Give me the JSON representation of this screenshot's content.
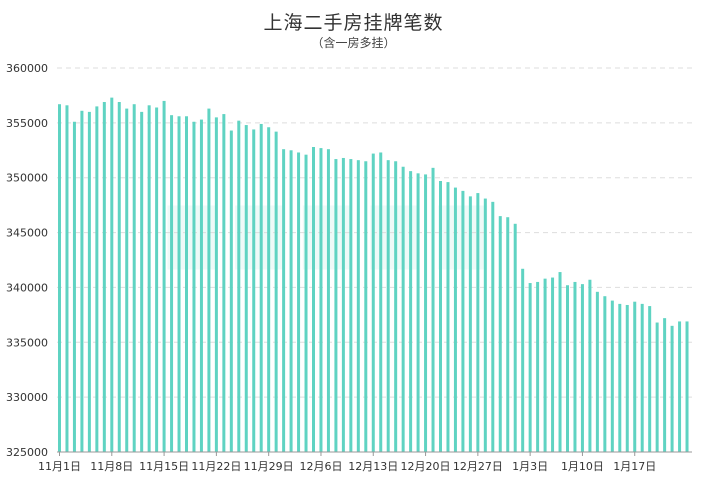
{
  "chart_data": {
    "type": "bar",
    "title": "上海二手房挂牌笔数",
    "subtitle": "（含一房多挂）",
    "ylim": [
      325000,
      360000
    ],
    "yticks": [
      325000,
      330000,
      335000,
      340000,
      345000,
      350000,
      355000,
      360000
    ],
    "xtick_labels": [
      "11月1日",
      "11月8日",
      "11月15日",
      "11月22日",
      "11月29日",
      "12月6日",
      "12月13日",
      "12月20日",
      "12月27日",
      "1月3日",
      "1月10日",
      "1月17日"
    ],
    "xtick_index": [
      0,
      7,
      14,
      21,
      28,
      35,
      42,
      49,
      56,
      63,
      70,
      77
    ],
    "bar_color": "#5fd3c2",
    "grid": true,
    "values": [
      356700,
      356600,
      355100,
      356100,
      356000,
      356500,
      356900,
      357300,
      356900,
      356300,
      356700,
      356000,
      356600,
      356400,
      357000,
      355700,
      355600,
      355600,
      355100,
      355300,
      356300,
      355500,
      355800,
      354300,
      355200,
      354800,
      354400,
      354900,
      354600,
      354200,
      352600,
      352500,
      352300,
      352100,
      352800,
      352700,
      352600,
      351700,
      351800,
      351700,
      351600,
      351500,
      352200,
      352300,
      351600,
      351500,
      351000,
      350600,
      350400,
      350300,
      350900,
      349700,
      349600,
      349100,
      348800,
      348300,
      348600,
      348100,
      347800,
      346500,
      346400,
      345800,
      341700,
      340400,
      340500,
      340800,
      340900,
      341400,
      340200,
      340500,
      340300,
      340700,
      339600,
      339200,
      338800,
      338500,
      338400,
      338700,
      338500,
      338300,
      336800,
      337200,
      336500,
      336900,
      336900
    ]
  }
}
